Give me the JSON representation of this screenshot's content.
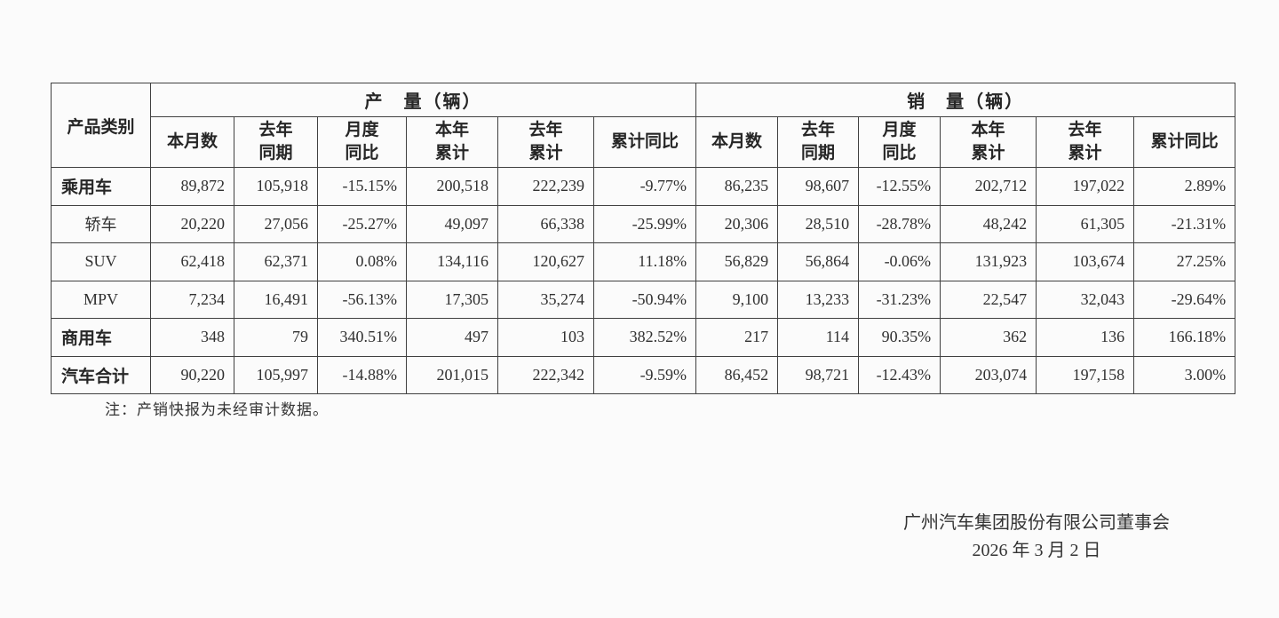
{
  "table": {
    "category_header": "产品类别",
    "production_header": "产　量（辆）",
    "sales_header": "销　量（辆）",
    "sub_headers": [
      "本月数",
      "去年\n同期",
      "月度\n同比",
      "本年\n累计",
      "去年\n累计",
      "累计同比"
    ],
    "rows": [
      {
        "label": "乘用车",
        "emphasis": true,
        "production": [
          "89,872",
          "105,918",
          "-15.15%",
          "200,518",
          "222,239",
          "-9.77%"
        ],
        "sales": [
          "86,235",
          "98,607",
          "-12.55%",
          "202,712",
          "197,022",
          "2.89%"
        ]
      },
      {
        "label": "轿车",
        "emphasis": false,
        "production": [
          "20,220",
          "27,056",
          "-25.27%",
          "49,097",
          "66,338",
          "-25.99%"
        ],
        "sales": [
          "20,306",
          "28,510",
          "-28.78%",
          "48,242",
          "61,305",
          "-21.31%"
        ]
      },
      {
        "label": "SUV",
        "emphasis": false,
        "production": [
          "62,418",
          "62,371",
          "0.08%",
          "134,116",
          "120,627",
          "11.18%"
        ],
        "sales": [
          "56,829",
          "56,864",
          "-0.06%",
          "131,923",
          "103,674",
          "27.25%"
        ]
      },
      {
        "label": "MPV",
        "emphasis": false,
        "production": [
          "7,234",
          "16,491",
          "-56.13%",
          "17,305",
          "35,274",
          "-50.94%"
        ],
        "sales": [
          "9,100",
          "13,233",
          "-31.23%",
          "22,547",
          "32,043",
          "-29.64%"
        ]
      },
      {
        "label": "商用车",
        "emphasis": true,
        "production": [
          "348",
          "79",
          "340.51%",
          "497",
          "103",
          "382.52%"
        ],
        "sales": [
          "217",
          "114",
          "90.35%",
          "362",
          "136",
          "166.18%"
        ]
      },
      {
        "label": "汽车合计",
        "emphasis": true,
        "production": [
          "90,220",
          "105,997",
          "-14.88%",
          "201,015",
          "222,342",
          "-9.59%"
        ],
        "sales": [
          "86,452",
          "98,721",
          "-12.43%",
          "203,074",
          "197,158",
          "3.00%"
        ]
      }
    ]
  },
  "note": "注：产销快报为未经审计数据。",
  "footer": {
    "company": "广州汽车集团股份有限公司董事会",
    "date": "2026 年 3 月 2 日"
  }
}
